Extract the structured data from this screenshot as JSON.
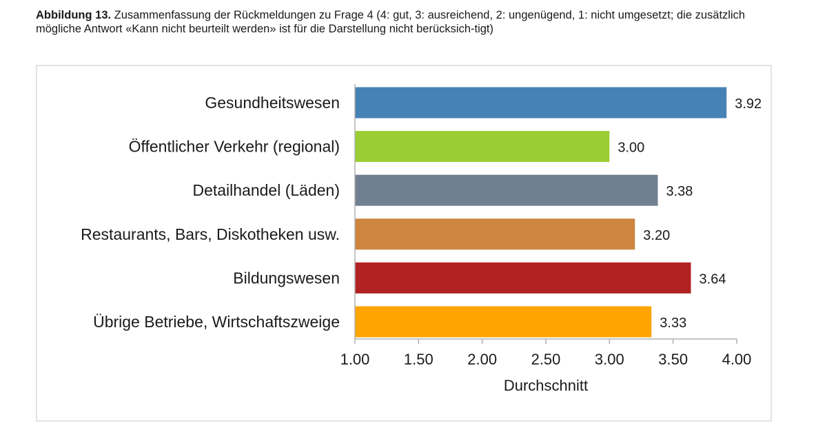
{
  "caption": {
    "lead": "Abbildung 13.",
    "text": " Zusammenfassung der Rückmeldungen zu Frage 4 (4: gut, 3: ausreichend, 2: ungenügend, 1: nicht umgesetzt; die zusätzlich mögliche Antwort «Kann nicht beurteilt werden» ist für die Darstellung nicht berücksich-tigt)"
  },
  "chart_data": {
    "type": "bar",
    "orientation": "horizontal",
    "categories": [
      "Gesundheitswesen",
      "Öffentlicher Verkehr (regional)",
      "Detailhandel (Läden)",
      "Restaurants, Bars, Diskotheken usw.",
      "Bildungswesen",
      "Übrige Betriebe, Wirtschaftszweige"
    ],
    "values": [
      3.92,
      3.0,
      3.38,
      3.2,
      3.64,
      3.33
    ],
    "value_labels": [
      "3.92",
      "3.00",
      "3.38",
      "3.20",
      "3.64",
      "3.33"
    ],
    "colors": [
      "#4682b4",
      "#9acd32",
      "#708090",
      "#cd853f",
      "#b22222",
      "#ffa500"
    ],
    "xlabel": "Durchschnitt",
    "xlim": [
      1.0,
      4.0
    ],
    "xticks": [
      1.0,
      1.5,
      2.0,
      2.5,
      3.0,
      3.5,
      4.0
    ],
    "xtick_labels": [
      "1.00",
      "1.50",
      "2.00",
      "2.50",
      "3.00",
      "3.50",
      "4.00"
    ],
    "grid": false,
    "legend": "none"
  }
}
